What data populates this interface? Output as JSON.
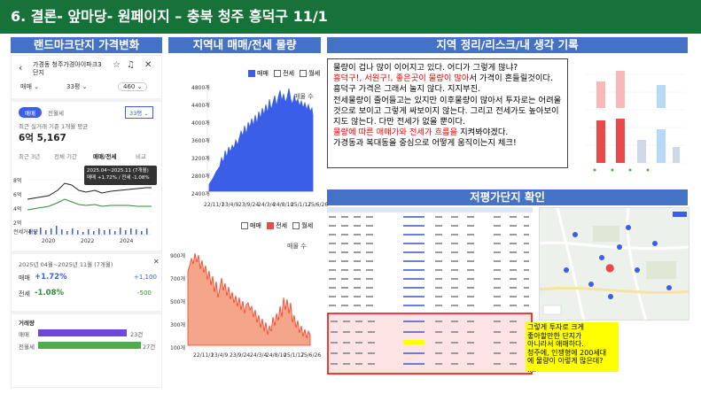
{
  "title": "6. 결론- 앞마당- 원페이지 – 충북 청주 흥덕구 11/1",
  "sections": {
    "landmark": "랜드마크단지 가격변화",
    "market": "지역내 매매/전세 물량",
    "notes": "지역 정리/리스크/내 생각 기록",
    "undervalued": "저평가단지 확인"
  },
  "app": {
    "complex_name": "가경동 청주가경아이파크3단지",
    "type_filter": "매매",
    "size_filter": "33평",
    "count_filter": "460",
    "tab_sale": "매매",
    "tab_jeonse": "전월세",
    "size_select": "33평",
    "recent_label": "최근 실거래 기준 1개월 평균",
    "price": "6억 5,167",
    "periods": [
      "최근 3년",
      "전체 기간",
      "매매/전세",
      "비교"
    ],
    "tooltip_period": "2025.04~2025.11 (7개월)",
    "tooltip_values": "매매 +1.72% / 전세 -1.08%",
    "y_ticks": [
      "8억",
      "6억",
      "4억",
      "2억",
      "0"
    ],
    "x_ticks": [
      "2020",
      "2022",
      "2024"
    ],
    "vol_label": "전세거래량",
    "summary_period": "2025년 04월~2025년 11월 (7개월)",
    "sale_label": "매매",
    "sale_change": "+1.72%",
    "sale_diff": "+1,100",
    "jeonse_label": "전세",
    "jeonse_change": "-1.08%",
    "jeonse_diff": "-500",
    "trade_title": "거래량",
    "trade_sale_label": "매매",
    "trade_sale_count": "23건",
    "trade_jeonse_label": "전월세",
    "trade_jeonse_count": "27건"
  },
  "chart1": {
    "legend": [
      "매매",
      "전세",
      "월세"
    ],
    "unit": "매물 수",
    "y_ticks": [
      "4800개",
      "4400개",
      "4000개",
      "3600개",
      "3200개",
      "2800개",
      "2400개"
    ],
    "x_ticks": [
      "22/11/1",
      "23/4/9",
      "23/9/24",
      "24/3/4",
      "24/8/10",
      "25/1/17",
      "25/6/26"
    ]
  },
  "chart2": {
    "legend": [
      "매매",
      "전세",
      "월세"
    ],
    "unit": "매물 수",
    "y_ticks": [
      "900개",
      "700개",
      "500개",
      "300개",
      "100개"
    ],
    "x_ticks": [
      "22/11/1",
      "23/4/9",
      "23/9/24",
      "24/3/4",
      "24/8/10",
      "25/1/17",
      "25/6/26"
    ]
  },
  "notes_text": {
    "l1": "물량이 겁나 많이 이어지고 있다. 어디가 그렇게 많냐?",
    "l2_red": "흥덕구!, 서원구!, 좋은곳이 물량이 많아",
    "l2_rest": "서 가격이 흔들릴것이다.",
    "l3": "흥덕구 가격은 그래서 눌지 않다. 지지부진.",
    "l4": "전세물량이 줄어들고는 있지만 이후물량이 많아서 투자로는 어려울 것으로 보이고 그렇게 싸보이지 않는다. 그리고 전세가도 높아보이지도 않는다. 다만 전세가 없을 뿐이다.",
    "l5_red": "물량에 따른 매매가와 전세가 흐름을",
    "l5_rest": "지켜봐야겠다.",
    "l6": "가경동과 복대동을 중심으로 어떻게 움직이는지 체크!"
  },
  "note_box": {
    "l1": "그렇게 투자로 크게",
    "l2": "좋아할만한 단지가",
    "l3": "아니라서 애매하다.",
    "l4": "청주에, 인쟁형에 200세대",
    "l5": "에 물량이 이렇게 많은데?",
    "l6": "...."
  },
  "colors": {
    "green": "#17723a",
    "blue": "#4472c4",
    "sale_red": "#e84a4a",
    "jeonse_blue": "#3b5ee8"
  }
}
